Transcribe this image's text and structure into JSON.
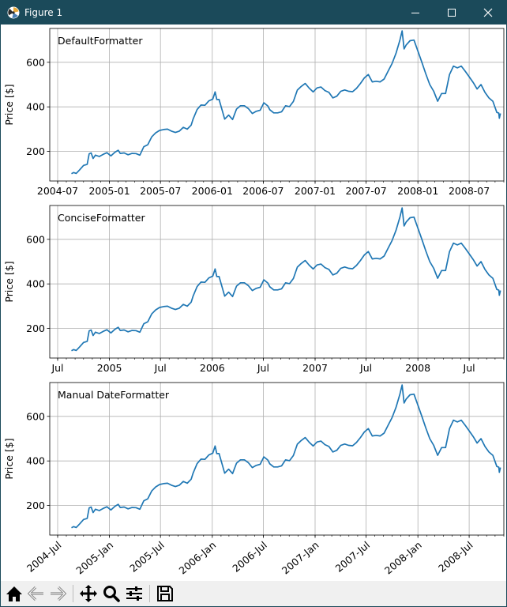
{
  "window": {
    "title": "Figure 1",
    "titlebar_color": "#1b4a5a",
    "icons": [
      "matplotlib-logo-icon",
      "minimize-icon",
      "maximize-icon",
      "close-icon"
    ]
  },
  "toolbar": {
    "buttons": [
      "home-icon",
      "back-arrow-icon",
      "forward-arrow-icon",
      "pan-move-icon",
      "zoom-magnifier-icon",
      "configure-subplots-icon",
      "save-floppy-icon"
    ]
  },
  "chart_data": [
    {
      "type": "line",
      "annotation": "DefaultFormatter",
      "ylabel": "Price [$]",
      "xlabel": "",
      "series_color": "#1f77b4",
      "grid": true,
      "x_range": [
        "2004-06-03",
        "2008-11-01"
      ],
      "ylim": [
        67,
        752
      ],
      "yticks": [
        200,
        400,
        600
      ],
      "x_ticks": [
        {
          "date": "2004-07-01",
          "label": "2004-07"
        },
        {
          "date": "2005-01-01",
          "label": "2005-01"
        },
        {
          "date": "2005-07-01",
          "label": "2005-07"
        },
        {
          "date": "2006-01-01",
          "label": "2006-01"
        },
        {
          "date": "2006-07-01",
          "label": "2006-07"
        },
        {
          "date": "2007-01-01",
          "label": "2007-01"
        },
        {
          "date": "2007-07-01",
          "label": "2007-07"
        },
        {
          "date": "2008-01-01",
          "label": "2008-01"
        },
        {
          "date": "2008-07-01",
          "label": "2008-07"
        }
      ],
      "x_tick_rotation": 0
    },
    {
      "type": "line",
      "annotation": "ConciseFormatter",
      "ylabel": "Price [$]",
      "xlabel": "",
      "series_color": "#1f77b4",
      "grid": true,
      "x_range": [
        "2004-06-03",
        "2008-11-01"
      ],
      "ylim": [
        67,
        752
      ],
      "yticks": [
        200,
        400,
        600
      ],
      "x_ticks": [
        {
          "date": "2004-07-01",
          "label": "Jul"
        },
        {
          "date": "2005-01-01",
          "label": "2005"
        },
        {
          "date": "2005-07-01",
          "label": "Jul"
        },
        {
          "date": "2006-01-01",
          "label": "2006"
        },
        {
          "date": "2006-07-01",
          "label": "Jul"
        },
        {
          "date": "2007-01-01",
          "label": "2007"
        },
        {
          "date": "2007-07-01",
          "label": "Jul"
        },
        {
          "date": "2008-01-01",
          "label": "2008"
        },
        {
          "date": "2008-07-01",
          "label": "Jul"
        }
      ],
      "x_tick_rotation": 0
    },
    {
      "type": "line",
      "annotation": "Manual DateFormatter",
      "ylabel": "Price [$]",
      "xlabel": "",
      "series_color": "#1f77b4",
      "grid": true,
      "x_range": [
        "2004-06-03",
        "2008-11-01"
      ],
      "ylim": [
        67,
        752
      ],
      "yticks": [
        200,
        400,
        600
      ],
      "x_ticks": [
        {
          "date": "2004-07-01",
          "label": "2004-Jul"
        },
        {
          "date": "2005-01-01",
          "label": "2005-Jan"
        },
        {
          "date": "2005-07-01",
          "label": "2005-Jul"
        },
        {
          "date": "2006-01-01",
          "label": "2006-Jan"
        },
        {
          "date": "2006-07-01",
          "label": "2006-Jul"
        },
        {
          "date": "2007-01-01",
          "label": "2007-Jan"
        },
        {
          "date": "2007-07-01",
          "label": "2007-Jul"
        },
        {
          "date": "2008-01-01",
          "label": "2008-Jan"
        },
        {
          "date": "2008-07-01",
          "label": "2008-Jul"
        }
      ],
      "x_tick_rotation": -40
    }
  ],
  "price_series": {
    "name": "",
    "points": [
      {
        "date": "2004-08-19",
        "y": 100
      },
      {
        "date": "2004-08-27",
        "y": 105
      },
      {
        "date": "2004-09-05",
        "y": 101
      },
      {
        "date": "2004-09-17",
        "y": 117
      },
      {
        "date": "2004-10-01",
        "y": 137
      },
      {
        "date": "2004-10-14",
        "y": 142
      },
      {
        "date": "2004-10-21",
        "y": 189
      },
      {
        "date": "2004-10-28",
        "y": 193
      },
      {
        "date": "2004-11-04",
        "y": 168
      },
      {
        "date": "2004-11-12",
        "y": 183
      },
      {
        "date": "2004-11-26",
        "y": 177
      },
      {
        "date": "2004-12-10",
        "y": 187
      },
      {
        "date": "2004-12-23",
        "y": 194
      },
      {
        "date": "2005-01-06",
        "y": 180
      },
      {
        "date": "2005-01-20",
        "y": 196
      },
      {
        "date": "2005-02-01",
        "y": 205
      },
      {
        "date": "2005-02-08",
        "y": 191
      },
      {
        "date": "2005-02-22",
        "y": 193
      },
      {
        "date": "2005-03-08",
        "y": 185
      },
      {
        "date": "2005-03-22",
        "y": 191
      },
      {
        "date": "2005-04-05",
        "y": 190
      },
      {
        "date": "2005-04-19",
        "y": 183
      },
      {
        "date": "2005-05-03",
        "y": 221
      },
      {
        "date": "2005-05-17",
        "y": 230
      },
      {
        "date": "2005-05-31",
        "y": 265
      },
      {
        "date": "2005-06-14",
        "y": 283
      },
      {
        "date": "2005-06-28",
        "y": 294
      },
      {
        "date": "2005-07-12",
        "y": 298
      },
      {
        "date": "2005-07-26",
        "y": 300
      },
      {
        "date": "2005-08-09",
        "y": 291
      },
      {
        "date": "2005-08-23",
        "y": 285
      },
      {
        "date": "2005-09-06",
        "y": 291
      },
      {
        "date": "2005-09-20",
        "y": 308
      },
      {
        "date": "2005-10-04",
        "y": 300
      },
      {
        "date": "2005-10-18",
        "y": 318
      },
      {
        "date": "2005-10-25",
        "y": 346
      },
      {
        "date": "2005-11-08",
        "y": 388
      },
      {
        "date": "2005-11-22",
        "y": 408
      },
      {
        "date": "2005-12-06",
        "y": 407
      },
      {
        "date": "2005-12-20",
        "y": 427
      },
      {
        "date": "2006-01-03",
        "y": 435
      },
      {
        "date": "2006-01-11",
        "y": 467
      },
      {
        "date": "2006-01-17",
        "y": 433
      },
      {
        "date": "2006-01-25",
        "y": 433
      },
      {
        "date": "2006-02-06",
        "y": 380
      },
      {
        "date": "2006-02-14",
        "y": 345
      },
      {
        "date": "2006-02-28",
        "y": 363
      },
      {
        "date": "2006-03-14",
        "y": 343
      },
      {
        "date": "2006-03-28",
        "y": 390
      },
      {
        "date": "2006-04-11",
        "y": 405
      },
      {
        "date": "2006-04-25",
        "y": 405
      },
      {
        "date": "2006-05-09",
        "y": 392
      },
      {
        "date": "2006-05-23",
        "y": 370
      },
      {
        "date": "2006-06-06",
        "y": 380
      },
      {
        "date": "2006-06-20",
        "y": 385
      },
      {
        "date": "2006-07-03",
        "y": 418
      },
      {
        "date": "2006-07-17",
        "y": 404
      },
      {
        "date": "2006-07-24",
        "y": 387
      },
      {
        "date": "2006-08-07",
        "y": 373
      },
      {
        "date": "2006-08-21",
        "y": 373
      },
      {
        "date": "2006-09-04",
        "y": 378
      },
      {
        "date": "2006-09-18",
        "y": 405
      },
      {
        "date": "2006-10-02",
        "y": 401
      },
      {
        "date": "2006-10-16",
        "y": 424
      },
      {
        "date": "2006-10-30",
        "y": 475
      },
      {
        "date": "2006-11-13",
        "y": 492
      },
      {
        "date": "2006-11-27",
        "y": 505
      },
      {
        "date": "2006-12-11",
        "y": 484
      },
      {
        "date": "2006-12-25",
        "y": 467
      },
      {
        "date": "2007-01-08",
        "y": 485
      },
      {
        "date": "2007-01-22",
        "y": 489
      },
      {
        "date": "2007-02-05",
        "y": 473
      },
      {
        "date": "2007-02-19",
        "y": 465
      },
      {
        "date": "2007-03-05",
        "y": 440
      },
      {
        "date": "2007-03-19",
        "y": 448
      },
      {
        "date": "2007-04-02",
        "y": 470
      },
      {
        "date": "2007-04-16",
        "y": 476
      },
      {
        "date": "2007-04-30",
        "y": 470
      },
      {
        "date": "2007-05-14",
        "y": 468
      },
      {
        "date": "2007-05-28",
        "y": 483
      },
      {
        "date": "2007-06-11",
        "y": 505
      },
      {
        "date": "2007-06-25",
        "y": 530
      },
      {
        "date": "2007-07-09",
        "y": 545
      },
      {
        "date": "2007-07-23",
        "y": 512
      },
      {
        "date": "2007-08-06",
        "y": 515
      },
      {
        "date": "2007-08-20",
        "y": 512
      },
      {
        "date": "2007-09-03",
        "y": 525
      },
      {
        "date": "2007-09-17",
        "y": 560
      },
      {
        "date": "2007-10-01",
        "y": 594
      },
      {
        "date": "2007-10-15",
        "y": 640
      },
      {
        "date": "2007-10-29",
        "y": 700
      },
      {
        "date": "2007-11-06",
        "y": 741
      },
      {
        "date": "2007-11-13",
        "y": 660
      },
      {
        "date": "2007-11-20",
        "y": 677
      },
      {
        "date": "2007-12-04",
        "y": 697
      },
      {
        "date": "2007-12-18",
        "y": 700
      },
      {
        "date": "2008-01-01",
        "y": 650
      },
      {
        "date": "2008-01-15",
        "y": 600
      },
      {
        "date": "2008-01-29",
        "y": 548
      },
      {
        "date": "2008-02-12",
        "y": 500
      },
      {
        "date": "2008-02-26",
        "y": 470
      },
      {
        "date": "2008-03-11",
        "y": 425
      },
      {
        "date": "2008-03-25",
        "y": 460
      },
      {
        "date": "2008-04-08",
        "y": 460
      },
      {
        "date": "2008-04-22",
        "y": 545
      },
      {
        "date": "2008-05-06",
        "y": 583
      },
      {
        "date": "2008-05-20",
        "y": 575
      },
      {
        "date": "2008-06-03",
        "y": 583
      },
      {
        "date": "2008-06-17",
        "y": 560
      },
      {
        "date": "2008-07-01",
        "y": 535
      },
      {
        "date": "2008-07-15",
        "y": 510
      },
      {
        "date": "2008-07-29",
        "y": 480
      },
      {
        "date": "2008-08-12",
        "y": 500
      },
      {
        "date": "2008-08-26",
        "y": 465
      },
      {
        "date": "2008-09-09",
        "y": 440
      },
      {
        "date": "2008-09-23",
        "y": 425
      },
      {
        "date": "2008-10-07",
        "y": 375
      },
      {
        "date": "2008-10-14",
        "y": 372
      },
      {
        "date": "2008-10-16",
        "y": 349
      },
      {
        "date": "2008-10-20",
        "y": 370
      }
    ]
  }
}
